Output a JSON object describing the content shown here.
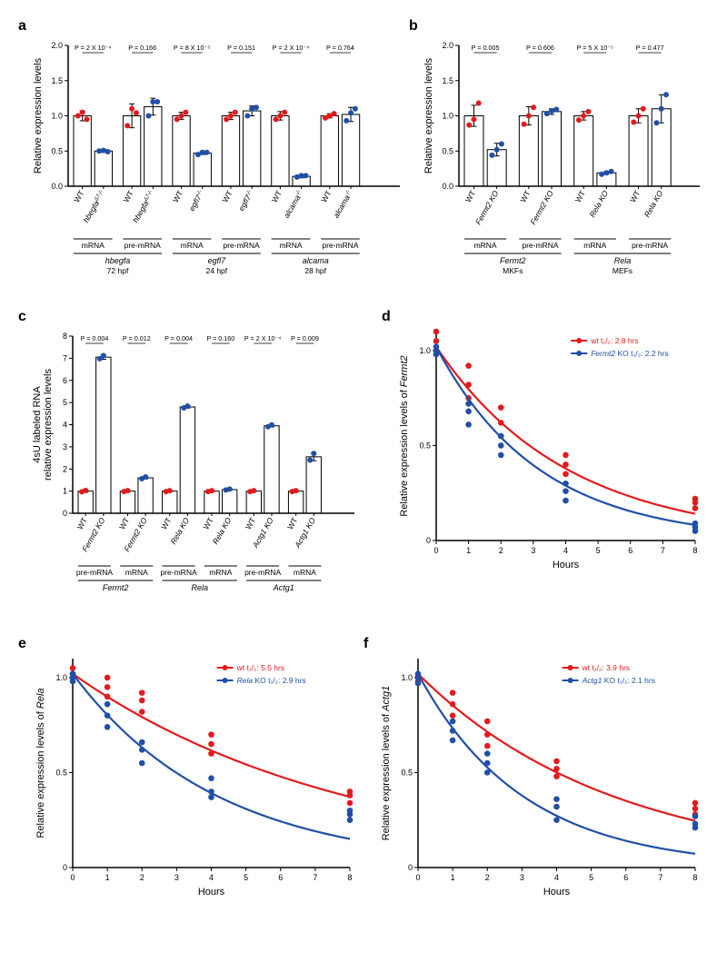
{
  "colors": {
    "red": "#e31a1c",
    "blue": "#1f4fa8",
    "black": "#000000",
    "white": "#ffffff",
    "axis": "#000000"
  },
  "panelA": {
    "label": "a",
    "ylabel": "Relative expression levels",
    "ylim": [
      0,
      2.0
    ],
    "yticks": [
      0,
      0.5,
      1.0,
      1.5,
      2.0
    ],
    "pvalues": [
      "P = 2 X 10⁻⁴",
      "P = 0.166",
      "P = 8 X 10⁻⁵",
      "P = 0.151",
      "P = 2 X 10⁻⁴",
      "P = 0.764"
    ],
    "xlabels": [
      "WT",
      "hbegfa^Δ7-/-",
      "WT",
      "hbegfa^Δ7-/-",
      "WT",
      "egfl7^-/-",
      "WT",
      "egfl7^-/-",
      "WT",
      "alcama^-/-",
      "WT",
      "alcama^-/-"
    ],
    "groups_lvl1": [
      "mRNA",
      "pre-mRNA",
      "mRNA",
      "pre-mRNA",
      "mRNA",
      "pre-mRNA"
    ],
    "groups_lvl2": [
      {
        "gene": "hbegfa",
        "sub": "72 hpf"
      },
      {
        "gene": "egfl7",
        "sub": "24 hpf"
      },
      {
        "gene": "alcama",
        "sub": "28 hpf"
      }
    ],
    "bars": [
      {
        "mean": 1.0,
        "err": 0.07,
        "color": "red",
        "pts": [
          1.0,
          1.05,
          0.95
        ]
      },
      {
        "mean": 0.5,
        "err": 0.02,
        "color": "blue",
        "pts": [
          0.5,
          0.51,
          0.49
        ]
      },
      {
        "mean": 1.0,
        "err": 0.17,
        "color": "red",
        "pts": [
          0.86,
          1.1,
          1.04
        ]
      },
      {
        "mean": 1.13,
        "err": 0.12,
        "color": "blue",
        "pts": [
          1.0,
          1.2,
          1.2
        ]
      },
      {
        "mean": 1.0,
        "err": 0.05,
        "color": "red",
        "pts": [
          0.95,
          1.0,
          1.05
        ]
      },
      {
        "mean": 0.47,
        "err": 0.02,
        "color": "blue",
        "pts": [
          0.45,
          0.48,
          0.48
        ]
      },
      {
        "mean": 1.0,
        "err": 0.05,
        "color": "red",
        "pts": [
          0.95,
          1.0,
          1.05
        ]
      },
      {
        "mean": 1.07,
        "err": 0.07,
        "color": "blue",
        "pts": [
          1.0,
          1.1,
          1.12
        ]
      },
      {
        "mean": 1.0,
        "err": 0.06,
        "color": "red",
        "pts": [
          0.95,
          1.0,
          1.05
        ]
      },
      {
        "mean": 0.14,
        "err": 0.02,
        "color": "blue",
        "pts": [
          0.13,
          0.15,
          0.15
        ]
      },
      {
        "mean": 1.0,
        "err": 0.03,
        "color": "red",
        "pts": [
          0.97,
          1.0,
          1.03
        ]
      },
      {
        "mean": 1.02,
        "err": 0.1,
        "color": "blue",
        "pts": [
          0.93,
          1.04,
          1.1
        ]
      }
    ]
  },
  "panelB": {
    "label": "b",
    "ylabel": "Relative expression levels",
    "ylim": [
      0,
      2.0
    ],
    "yticks": [
      0,
      0.5,
      1.0,
      1.5,
      2.0
    ],
    "pvalues": [
      "P = 0.005",
      "P = 0.606",
      "P = 5 X 10⁻⁵",
      "P = 0.477"
    ],
    "xlabels": [
      "WT",
      "Fermt2 KO",
      "WT",
      "Fermt2 KO",
      "WT",
      "Rela KO",
      "WT",
      "Rela KO"
    ],
    "groups_lvl1": [
      "mRNA",
      "pre-mRNA",
      "mRNA",
      "pre-mRNA"
    ],
    "groups_lvl2": [
      {
        "gene": "Fermt2",
        "sub": "MKFs"
      },
      {
        "gene": "Rela",
        "sub": "MEFs"
      }
    ],
    "bars": [
      {
        "mean": 1.0,
        "err": 0.15,
        "color": "red",
        "pts": [
          0.87,
          0.95,
          1.18
        ]
      },
      {
        "mean": 0.52,
        "err": 0.09,
        "color": "blue",
        "pts": [
          0.44,
          0.52,
          0.6
        ]
      },
      {
        "mean": 1.0,
        "err": 0.13,
        "color": "red",
        "pts": [
          0.88,
          1.0,
          1.12
        ]
      },
      {
        "mean": 1.06,
        "err": 0.04,
        "color": "blue",
        "pts": [
          1.03,
          1.07,
          1.09
        ]
      },
      {
        "mean": 1.0,
        "err": 0.06,
        "color": "red",
        "pts": [
          0.94,
          1.0,
          1.06
        ]
      },
      {
        "mean": 0.19,
        "err": 0.02,
        "color": "blue",
        "pts": [
          0.17,
          0.19,
          0.21
        ]
      },
      {
        "mean": 1.0,
        "err": 0.1,
        "color": "red",
        "pts": [
          0.91,
          1.0,
          1.1
        ]
      },
      {
        "mean": 1.1,
        "err": 0.2,
        "color": "blue",
        "pts": [
          0.9,
          1.1,
          1.3
        ]
      }
    ]
  },
  "panelC": {
    "label": "c",
    "ylabel": "4sU labeled RNA\nrelative expression levels",
    "ylim": [
      0,
      8
    ],
    "yticks": [
      0,
      1,
      2,
      3,
      4,
      5,
      6,
      7,
      8
    ],
    "pvalues": [
      "P = 0.004",
      "P = 0.012",
      "P = 0.004",
      "P = 0.160",
      "P = 2 X 10⁻⁴",
      "P = 0.009"
    ],
    "xlabels": [
      "WT",
      "Fermt2 KO",
      "WT",
      "Fermt2 KO",
      "WT",
      "Rela KO",
      "WT",
      "Rela KO",
      "WT",
      "Actg1 KO",
      "WT",
      "Actg1 KO"
    ],
    "groups_lvl1": [
      "pre-mRNA",
      "mRNA",
      "pre-mRNA",
      "mRNA",
      "pre-mRNA",
      "mRNA"
    ],
    "groups_lvl2": [
      {
        "gene": "Fermt2",
        "sub": ""
      },
      {
        "gene": "Rela",
        "sub": ""
      },
      {
        "gene": "Actg1",
        "sub": ""
      }
    ],
    "bars": [
      {
        "mean": 1.0,
        "err": 0.05,
        "color": "red",
        "pts": [
          0.97,
          1.03
        ]
      },
      {
        "mean": 7.05,
        "err": 0.1,
        "color": "blue",
        "pts": [
          6.98,
          7.12
        ]
      },
      {
        "mean": 1.0,
        "err": 0.03,
        "color": "red",
        "pts": [
          0.98,
          1.02
        ]
      },
      {
        "mean": 1.6,
        "err": 0.05,
        "color": "blue",
        "pts": [
          1.56,
          1.64
        ]
      },
      {
        "mean": 1.0,
        "err": 0.03,
        "color": "red",
        "pts": [
          0.98,
          1.02
        ]
      },
      {
        "mean": 4.8,
        "err": 0.05,
        "color": "blue",
        "pts": [
          4.76,
          4.84
        ]
      },
      {
        "mean": 1.0,
        "err": 0.03,
        "color": "red",
        "pts": [
          0.98,
          1.02
        ]
      },
      {
        "mean": 1.07,
        "err": 0.03,
        "color": "blue",
        "pts": [
          1.05,
          1.09
        ]
      },
      {
        "mean": 1.0,
        "err": 0.03,
        "color": "red",
        "pts": [
          0.98,
          1.02
        ]
      },
      {
        "mean": 3.95,
        "err": 0.05,
        "color": "blue",
        "pts": [
          3.91,
          3.99
        ]
      },
      {
        "mean": 1.0,
        "err": 0.03,
        "color": "red",
        "pts": [
          0.98,
          1.02
        ]
      },
      {
        "mean": 2.55,
        "err": 0.18,
        "color": "blue",
        "pts": [
          2.4,
          2.7
        ]
      }
    ]
  },
  "panelD": {
    "label": "d",
    "ylabel": "Relative expression levels of Fermt2",
    "xlabel": "Hours",
    "xlim": [
      0,
      8
    ],
    "ylim": [
      0,
      1.1
    ],
    "xticks": [
      0,
      1,
      2,
      3,
      4,
      5,
      6,
      7,
      8
    ],
    "yticks": [
      0,
      0.5,
      1.0
    ],
    "legend": {
      "wt": "wt t₁/₂: 2.8 hrs",
      "ko": "Fermt2 KO t₁/₂: 2.2 hrs",
      "ko_gene": "Fermt2"
    },
    "wt": {
      "halflife": 2.8,
      "color": "#e31a1c",
      "pts": [
        [
          0,
          1.0
        ],
        [
          0,
          1.1
        ],
        [
          0,
          1.05
        ],
        [
          1,
          0.75
        ],
        [
          1,
          0.82
        ],
        [
          1,
          0.92
        ],
        [
          2,
          0.55
        ],
        [
          2,
          0.62
        ],
        [
          2,
          0.7
        ],
        [
          4,
          0.35
        ],
        [
          4,
          0.4
        ],
        [
          4,
          0.45
        ],
        [
          8,
          0.17
        ],
        [
          8,
          0.2
        ],
        [
          8,
          0.22
        ]
      ]
    },
    "ko": {
      "halflife": 2.2,
      "color": "#1f4fa8",
      "pts": [
        [
          0,
          0.98
        ],
        [
          0,
          1.02
        ],
        [
          0,
          1.0
        ],
        [
          1,
          0.61
        ],
        [
          1,
          0.68
        ],
        [
          1,
          0.72
        ],
        [
          2,
          0.45
        ],
        [
          2,
          0.5
        ],
        [
          2,
          0.55
        ],
        [
          4,
          0.21
        ],
        [
          4,
          0.26
        ],
        [
          4,
          0.3
        ],
        [
          8,
          0.05
        ],
        [
          8,
          0.07
        ],
        [
          8,
          0.09
        ]
      ]
    }
  },
  "panelE": {
    "label": "e",
    "ylabel": "Relative expression levels of Rela",
    "xlabel": "Hours",
    "xlim": [
      0,
      8
    ],
    "ylim": [
      0,
      1.1
    ],
    "xticks": [
      0,
      1,
      2,
      3,
      4,
      5,
      6,
      7,
      8
    ],
    "yticks": [
      0,
      0.5,
      1.0
    ],
    "legend": {
      "wt": "wt t₁/₂: 5.5 hrs",
      "ko": "Rela KO t₁/₂: 2.9 hrs",
      "ko_gene": "Rela"
    },
    "wt": {
      "halflife": 5.5,
      "color": "#e31a1c",
      "pts": [
        [
          0,
          1.0
        ],
        [
          0,
          1.05
        ],
        [
          0,
          1.02
        ],
        [
          1,
          0.9
        ],
        [
          1,
          0.95
        ],
        [
          1,
          1.0
        ],
        [
          2,
          0.82
        ],
        [
          2,
          0.88
        ],
        [
          2,
          0.92
        ],
        [
          4,
          0.6
        ],
        [
          4,
          0.65
        ],
        [
          4,
          0.7
        ],
        [
          8,
          0.34
        ],
        [
          8,
          0.38
        ],
        [
          8,
          0.4
        ]
      ]
    },
    "ko": {
      "halflife": 2.9,
      "color": "#1f4fa8",
      "pts": [
        [
          0,
          0.98
        ],
        [
          0,
          1.02
        ],
        [
          0,
          1.0
        ],
        [
          1,
          0.74
        ],
        [
          1,
          0.8
        ],
        [
          1,
          0.86
        ],
        [
          2,
          0.55
        ],
        [
          2,
          0.62
        ],
        [
          2,
          0.66
        ],
        [
          4,
          0.37
        ],
        [
          4,
          0.4
        ],
        [
          4,
          0.47
        ],
        [
          8,
          0.25
        ],
        [
          8,
          0.28
        ],
        [
          8,
          0.3
        ]
      ]
    }
  },
  "panelF": {
    "label": "f",
    "ylabel": "Relative expression levels of Actg1",
    "xlabel": "Hours",
    "xlim": [
      0,
      8
    ],
    "ylim": [
      0,
      1.1
    ],
    "xticks": [
      0,
      1,
      2,
      3,
      4,
      5,
      6,
      7,
      8
    ],
    "yticks": [
      0,
      0.5,
      1.0
    ],
    "legend": {
      "wt": "wt t₁/₂: 3.9 hrs",
      "ko": "Actg1 KO t₁/₂: 2.1 hrs",
      "ko_gene": "Actg1"
    },
    "wt": {
      "halflife": 3.9,
      "color": "#e31a1c",
      "pts": [
        [
          0,
          1.0
        ],
        [
          0,
          0.98
        ],
        [
          0,
          1.01
        ],
        [
          1,
          0.8
        ],
        [
          1,
          0.86
        ],
        [
          1,
          0.92
        ],
        [
          2,
          0.64
        ],
        [
          2,
          0.7
        ],
        [
          2,
          0.77
        ],
        [
          4,
          0.48
        ],
        [
          4,
          0.52
        ],
        [
          4,
          0.56
        ],
        [
          8,
          0.28
        ],
        [
          8,
          0.31
        ],
        [
          8,
          0.34
        ]
      ]
    },
    "ko": {
      "halflife": 2.1,
      "color": "#1f4fa8",
      "pts": [
        [
          0,
          0.97
        ],
        [
          0,
          1.0
        ],
        [
          0,
          1.02
        ],
        [
          1,
          0.67
        ],
        [
          1,
          0.72
        ],
        [
          1,
          0.77
        ],
        [
          2,
          0.5
        ],
        [
          2,
          0.55
        ],
        [
          2,
          0.6
        ],
        [
          4,
          0.25
        ],
        [
          4,
          0.32
        ],
        [
          4,
          0.36
        ],
        [
          8,
          0.21
        ],
        [
          8,
          0.23
        ],
        [
          8,
          0.27
        ]
      ]
    }
  }
}
